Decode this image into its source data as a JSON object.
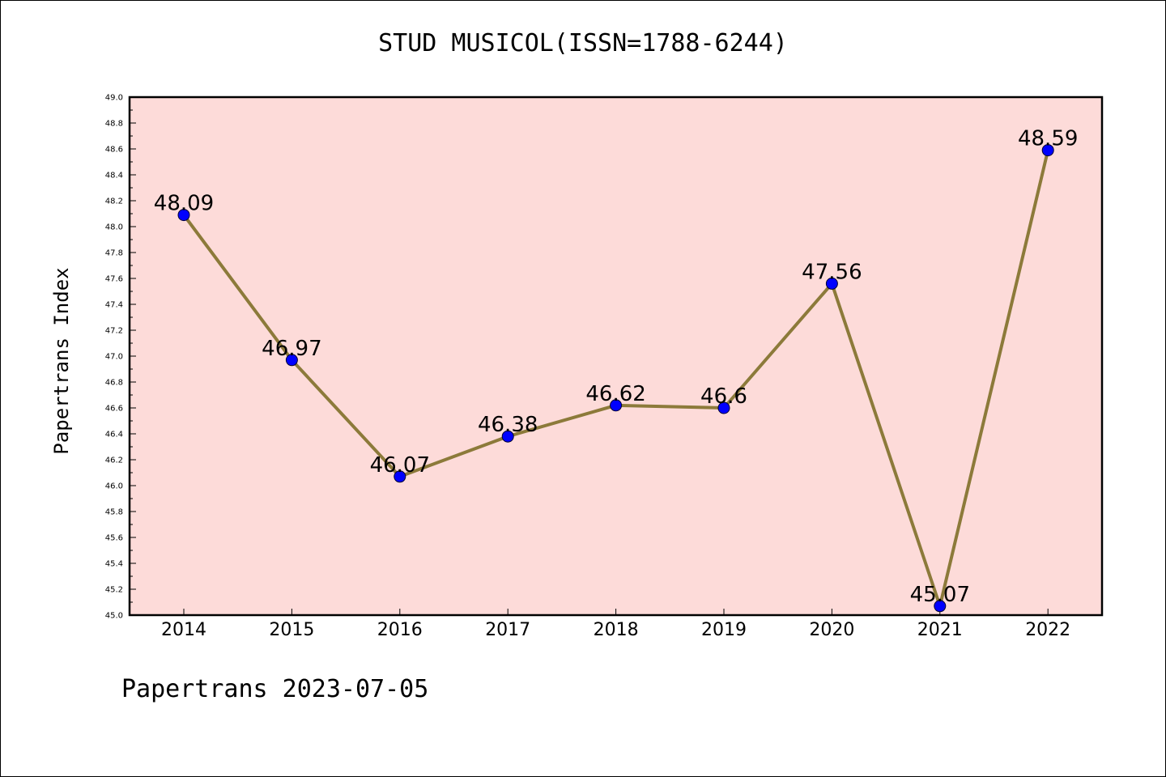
{
  "chart_data": {
    "type": "line",
    "title": "STUD MUSICOL(ISSN=1788-6244)",
    "ylabel": "Papertrans Index",
    "xlabel": "",
    "categories": [
      "2014",
      "2015",
      "2016",
      "2017",
      "2018",
      "2019",
      "2020",
      "2021",
      "2022"
    ],
    "series": [
      {
        "values": [
          48.09,
          46.97,
          46.07,
          46.38,
          46.62,
          46.6,
          47.56,
          45.07,
          48.59
        ],
        "labels": [
          "48.09",
          "46.97",
          "46.07",
          "46.38",
          "46.62",
          "46.6",
          "47.56",
          "45.07",
          "48.59"
        ]
      }
    ],
    "ylim": [
      45.0,
      49.0
    ],
    "yticks": [
      "45.0",
      "45.2",
      "45.4",
      "45.6",
      "45.8",
      "46.0",
      "46.2",
      "46.4",
      "46.6",
      "46.8",
      "47.0",
      "47.2",
      "47.4",
      "47.6",
      "47.8",
      "48.0",
      "48.2",
      "48.4",
      "48.6",
      "48.8",
      "49.0"
    ],
    "grid": false,
    "line_color": "#8c7a3a",
    "marker_color": "#0000ff",
    "plot_background": "#fddbd9"
  },
  "footer": "Papertrans 2023-07-05"
}
